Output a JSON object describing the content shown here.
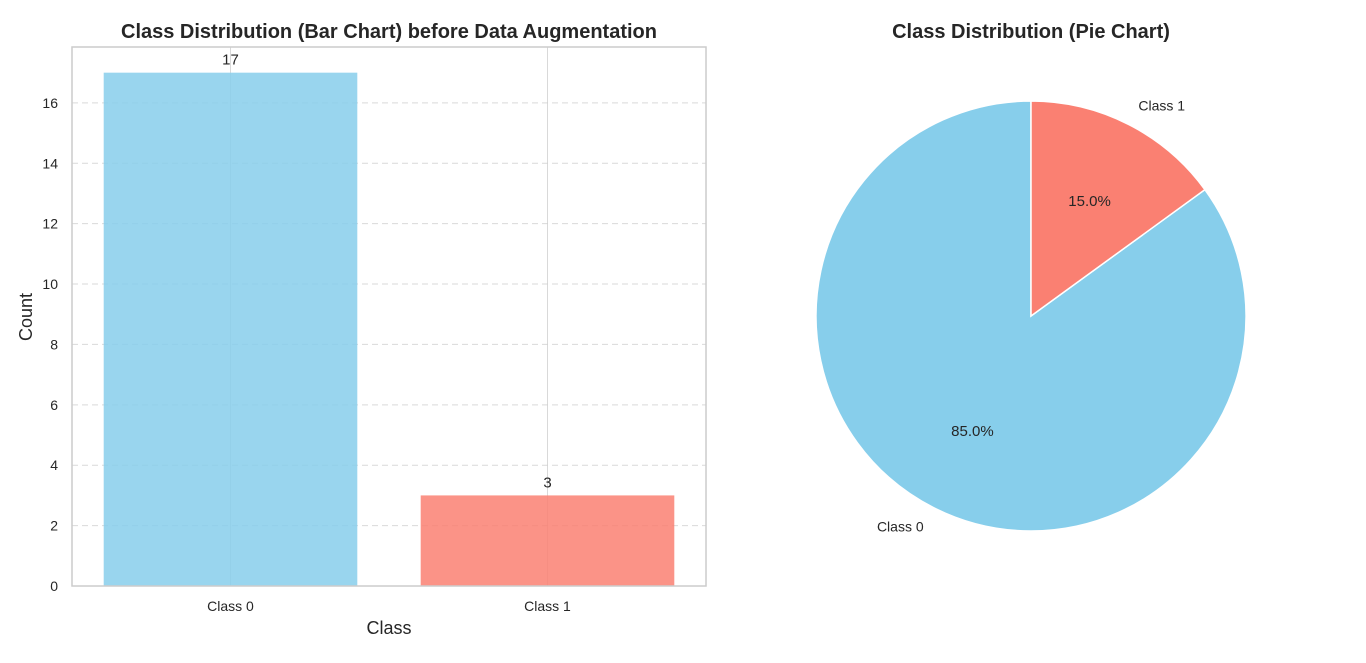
{
  "chart_data": [
    {
      "type": "bar",
      "title": "Class Distribution (Bar Chart) before Data Augmentation",
      "xlabel": "Class",
      "ylabel": "Count",
      "categories": [
        "Class 0",
        "Class 1"
      ],
      "values": [
        17,
        3
      ],
      "data_labels": [
        "17",
        "3"
      ],
      "colors": [
        "#87ceeb",
        "#fa8072"
      ],
      "ylim": [
        0,
        17.85
      ],
      "yticks": [
        0,
        2,
        4,
        6,
        8,
        10,
        12,
        14,
        16
      ],
      "grid": "y-dashed",
      "legend": "none"
    },
    {
      "type": "pie",
      "title": "Class Distribution (Pie Chart)",
      "labels": [
        "Class 0",
        "Class 1"
      ],
      "values": [
        85.0,
        15.0
      ],
      "pct_labels": [
        "85.0%",
        "15.0%"
      ],
      "colors": [
        "#87ceeb",
        "#fa8072"
      ],
      "start": "top",
      "direction": "counterclockwise-for-first-slice",
      "legend": "none"
    }
  ]
}
